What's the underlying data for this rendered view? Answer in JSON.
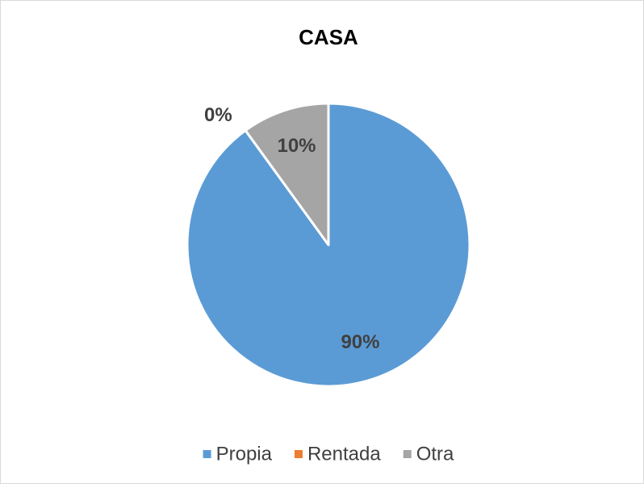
{
  "chart_data": {
    "type": "pie",
    "title": "CASA",
    "categories": [
      "Propia",
      "Rentada",
      "Otra"
    ],
    "values": [
      90,
      0,
      10
    ],
    "value_labels": [
      "90%",
      "0%",
      "10%"
    ],
    "colors": [
      "#5b9bd5",
      "#ed7d31",
      "#a5a5a5"
    ],
    "legend": "bottom"
  }
}
